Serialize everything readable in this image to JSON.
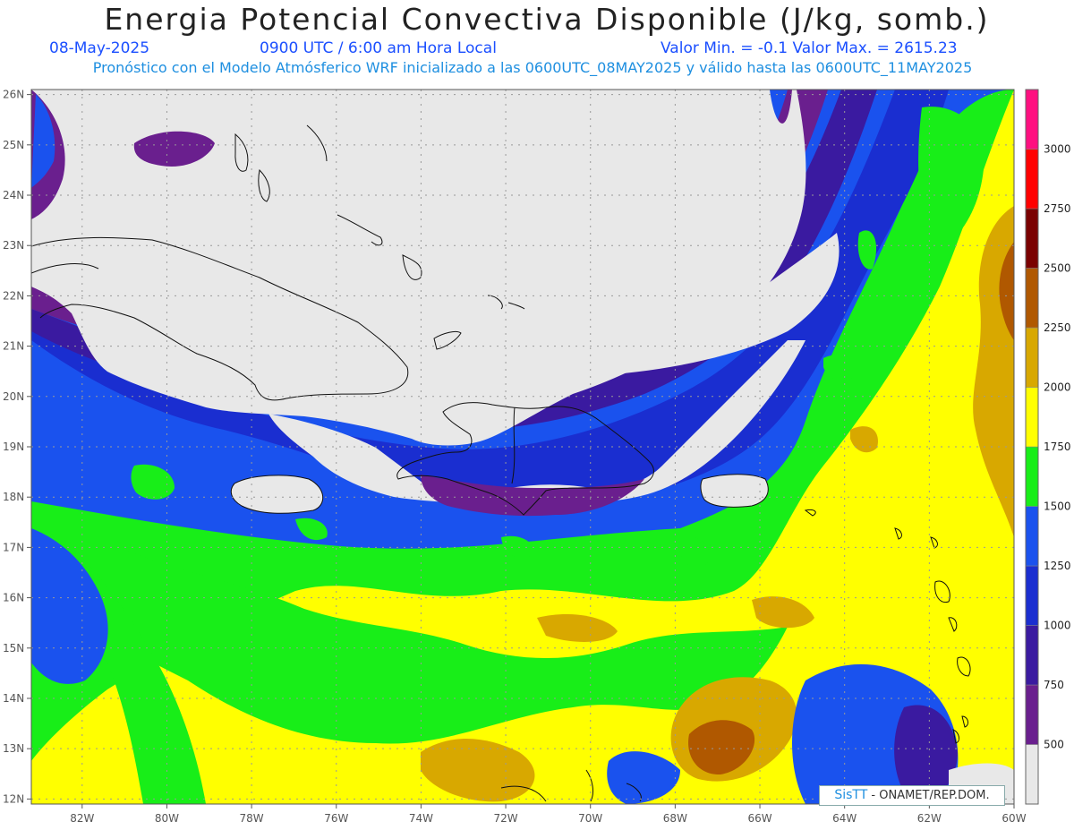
{
  "header": {
    "title": "Energia Potencial Convectiva Disponible (J/kg, somb.)",
    "date": "08-May-2025",
    "time": "0900 UTC / 6:00 am Hora Local",
    "minmax": "Valor Min. = -0.1  Valor Max. = 2615.23",
    "forecast": "Pronóstico con el Modelo Atmósferico WRF inicializado a las 0600UTC_08MAY2025 y válido hasta las  0600UTC_11MAY2025"
  },
  "map": {
    "lon_range": [
      -83.2,
      -60
    ],
    "lat_range": [
      11.9,
      26.1
    ],
    "x_ticks": [
      {
        "lon": -82,
        "label": "82W"
      },
      {
        "lon": -80,
        "label": "80W"
      },
      {
        "lon": -78,
        "label": "78W"
      },
      {
        "lon": -76,
        "label": "76W"
      },
      {
        "lon": -74,
        "label": "74W"
      },
      {
        "lon": -72,
        "label": "72W"
      },
      {
        "lon": -70,
        "label": "70W"
      },
      {
        "lon": -68,
        "label": "68W"
      },
      {
        "lon": -66,
        "label": "66W"
      },
      {
        "lon": -64,
        "label": "64W"
      },
      {
        "lon": -62,
        "label": "62W"
      },
      {
        "lon": -60,
        "label": "60W"
      }
    ],
    "y_ticks": [
      {
        "lat": 26,
        "label": "26N"
      },
      {
        "lat": 25,
        "label": "25N"
      },
      {
        "lat": 24,
        "label": "24N"
      },
      {
        "lat": 23,
        "label": "23N"
      },
      {
        "lat": 22,
        "label": "22N"
      },
      {
        "lat": 21,
        "label": "21N"
      },
      {
        "lat": 20,
        "label": "20N"
      },
      {
        "lat": 19,
        "label": "19N"
      },
      {
        "lat": 18,
        "label": "18N"
      },
      {
        "lat": 17,
        "label": "17N"
      },
      {
        "lat": 16,
        "label": "16N"
      },
      {
        "lat": 15,
        "label": "15N"
      },
      {
        "lat": 14,
        "label": "14N"
      },
      {
        "lat": 13,
        "label": "13N"
      },
      {
        "lat": 12,
        "label": "12N"
      }
    ],
    "dry_color": "#e8e8e8"
  },
  "colorbar": {
    "bins": [
      {
        "value": 500,
        "color": "#6a1f8e"
      },
      {
        "value": 750,
        "color": "#3a1aa0"
      },
      {
        "value": 1000,
        "color": "#1a2ed0"
      },
      {
        "value": 1250,
        "color": "#1a52ee"
      },
      {
        "value": 1500,
        "color": "#18ee18"
      },
      {
        "value": 1750,
        "color": "#ffff00"
      },
      {
        "value": 2000,
        "color": "#d8a800"
      },
      {
        "value": 2250,
        "color": "#b05800"
      },
      {
        "value": 2500,
        "color": "#7a0000"
      },
      {
        "value": 2750,
        "color": "#ff0000"
      },
      {
        "value": 3000,
        "color": "#ff1080"
      }
    ],
    "top_color": "#ff1090"
  },
  "credit": {
    "brand": "SisTT",
    "text": "- ONAMET/REP.DOM."
  }
}
